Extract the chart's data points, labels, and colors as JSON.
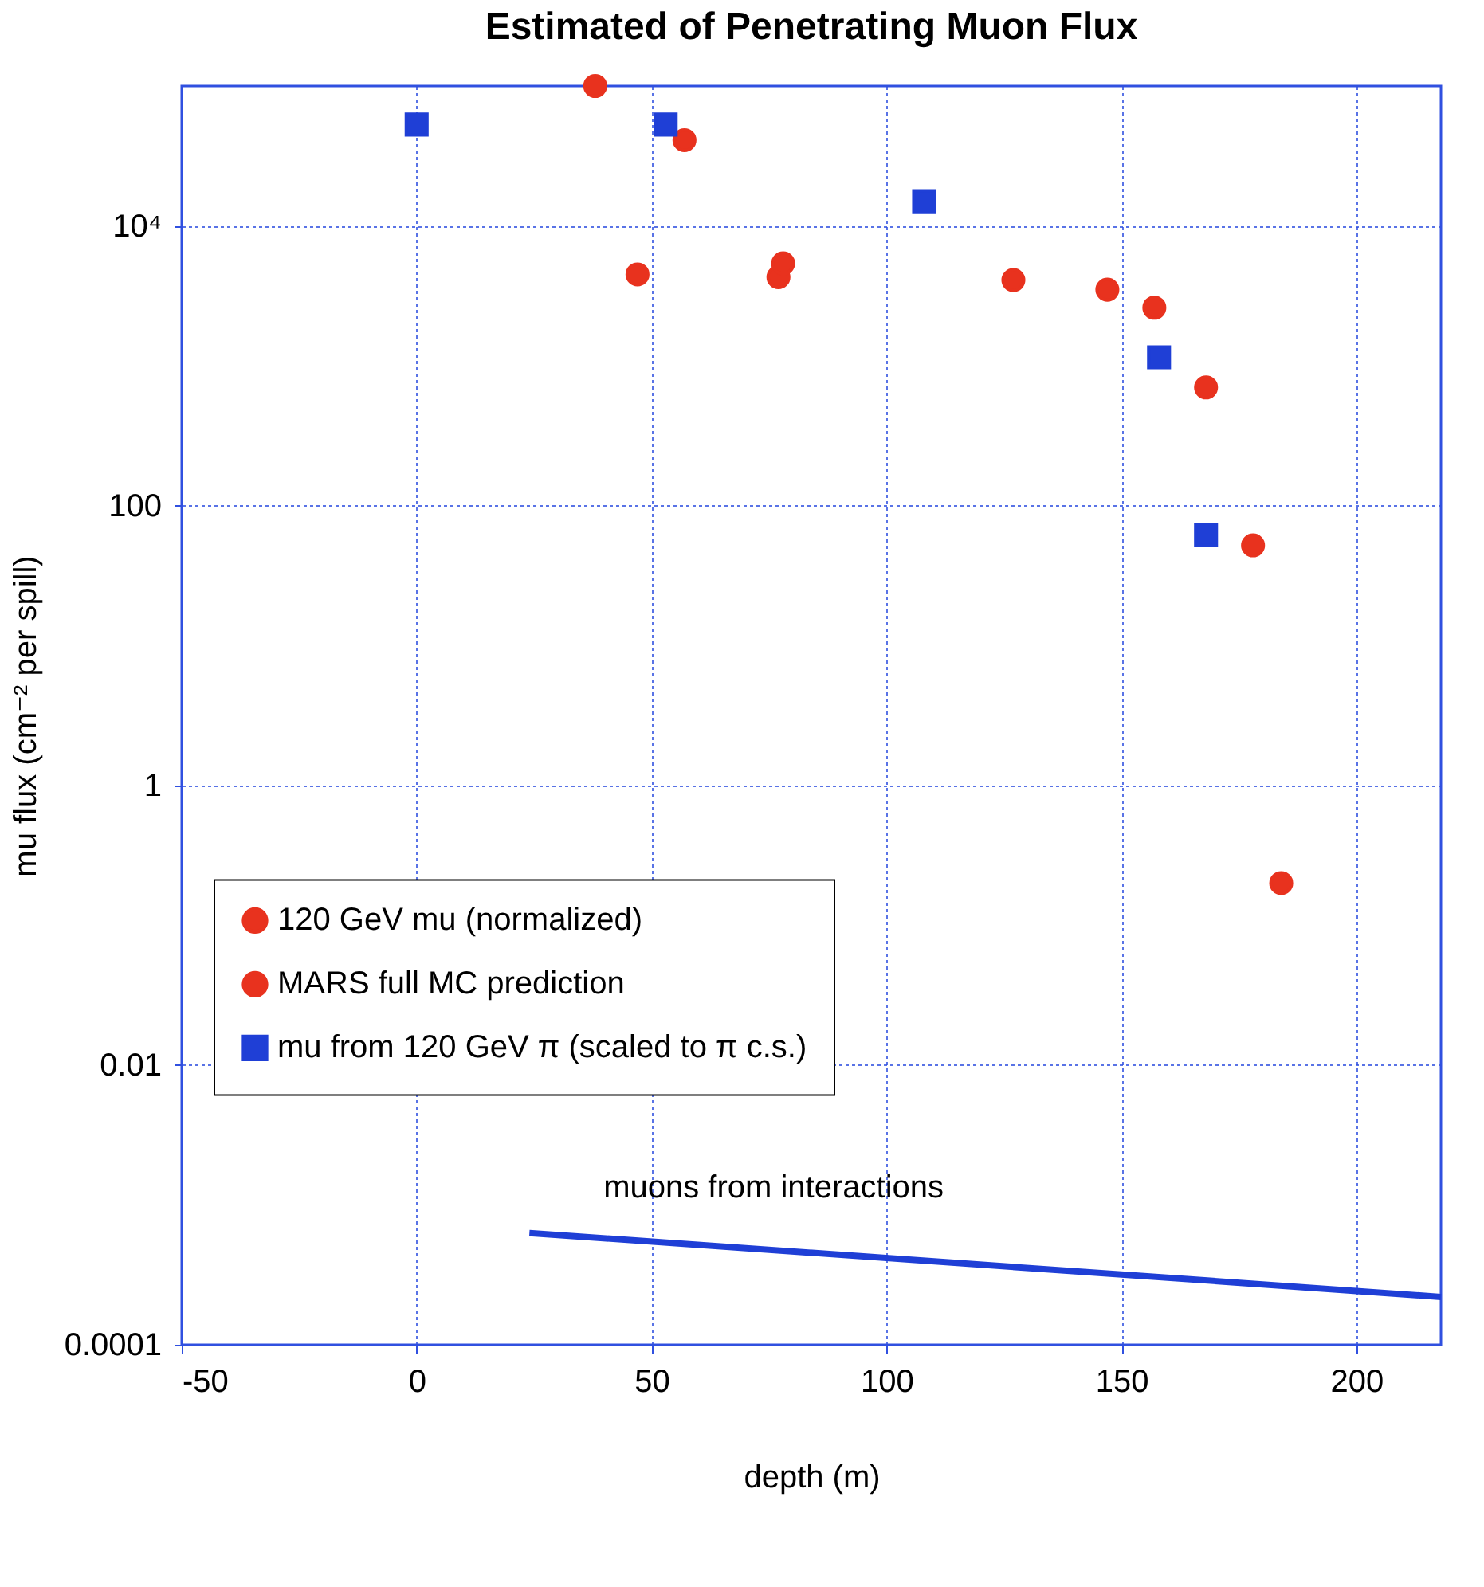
{
  "chart_data": {
    "type": "scatter",
    "title": "Estimated of Penetrating Muon Flux",
    "xlabel": "depth (m)",
    "ylabel": "mu flux (cm⁻² per spill)",
    "xlim": [
      -50,
      218
    ],
    "xticks": [
      -50,
      0,
      50,
      100,
      150,
      200
    ],
    "ylim": [
      0.0001,
      100000
    ],
    "yticks": [
      {
        "value": 0.0001,
        "label": "0.0001"
      },
      0.01,
      1,
      100,
      {
        "value": 10000,
        "label": "10⁴"
      }
    ],
    "log": "y",
    "grid": true,
    "legend": "left",
    "series": [
      {
        "name": "120 GeV mu (normalized)",
        "color": "#e8321e",
        "marker": "circle",
        "x": [
          47,
          77,
          127,
          147,
          157,
          168,
          178,
          184
        ],
        "values": [
          4500,
          4300,
          4100,
          3500,
          2600,
          700,
          52,
          0.2
        ]
      },
      {
        "name": "MARS full MC prediction",
        "color": "#e8321e",
        "marker": "circle",
        "x": [
          38,
          57,
          78
        ],
        "values": [
          100000,
          41000,
          5400
        ]
      },
      {
        "name": "mu from 120 GeV π (scaled to π c.s.)",
        "color": "#1f3fd6",
        "marker": "square",
        "x": [
          0,
          53,
          108,
          158,
          168
        ],
        "values": [
          53000,
          53000,
          15000,
          1150,
          62
        ]
      },
      {
        "type": "line",
        "color": "#1f3fd6",
        "marker": "none",
        "x": [
          24,
          218
        ],
        "values": [
          0.00063,
          0.00022
        ]
      }
    ],
    "annotations": [
      "muons from interactions"
    ]
  }
}
